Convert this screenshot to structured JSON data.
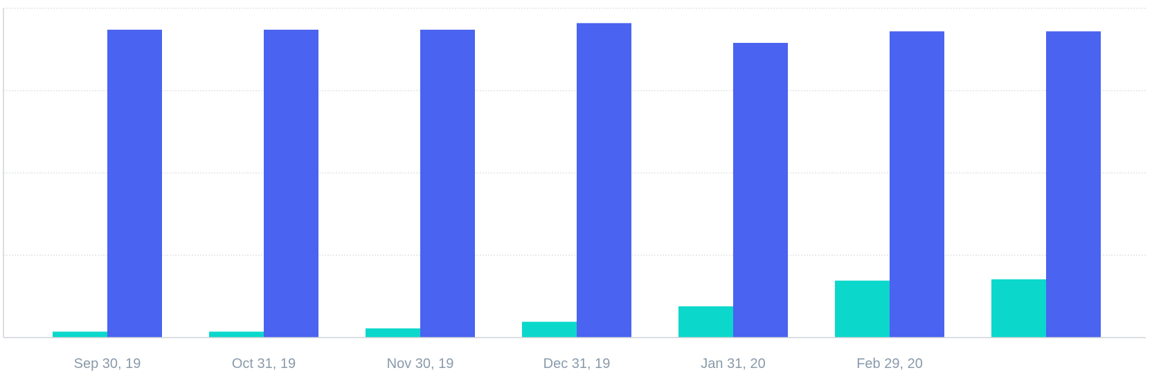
{
  "chart_data": {
    "type": "bar",
    "categories": [
      "Sep 30, 19",
      "Oct 31, 19",
      "Nov 30, 19",
      "Dec 31, 19",
      "Jan 31, 20",
      "Feb 29, 20",
      ""
    ],
    "series": [
      {
        "color": "#0bd8cb",
        "values": [
          1.8,
          1.8,
          2.8,
          4.8,
          9.5,
          17.3,
          17.7
        ]
      },
      {
        "color": "#4a63f0",
        "values": [
          93.5,
          93.5,
          93.5,
          95.5,
          89.5,
          93.0,
          93.0
        ]
      }
    ],
    "ylim": [
      0,
      100
    ],
    "y_gridlines": [
      0,
      25,
      50,
      75,
      100
    ],
    "grid": true,
    "y_tick_labels_shown": false,
    "legend": "none"
  }
}
